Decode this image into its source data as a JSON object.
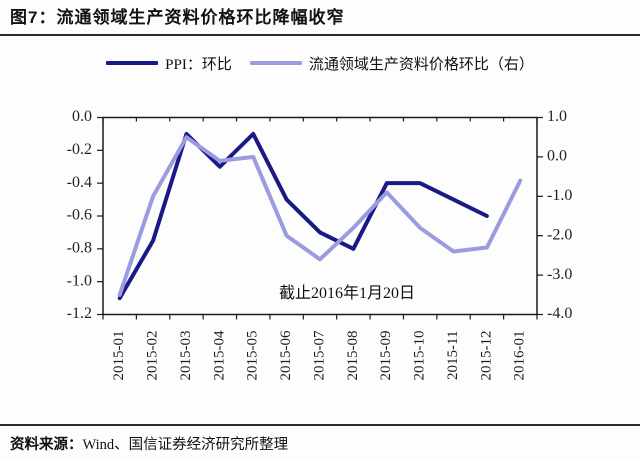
{
  "header": {
    "title": "图7：流通领域生产资料价格环比降幅收窄"
  },
  "chart_data": {
    "type": "line",
    "title": "",
    "categories": [
      "2015-01",
      "2015-02",
      "2015-03",
      "2015-04",
      "2015-05",
      "2015-06",
      "2015-07",
      "2015-08",
      "2015-09",
      "2015-10",
      "2015-11",
      "2015-12",
      "2016-01"
    ],
    "series": [
      {
        "id": "ppi",
        "name": "PPI：环比",
        "axis": "left",
        "color": "#1a1a86",
        "values": [
          -1.1,
          -0.75,
          -0.1,
          -0.3,
          -0.1,
          -0.5,
          -0.7,
          -0.8,
          -0.4,
          -0.4,
          -0.5,
          -0.6
        ]
      },
      {
        "id": "circulation",
        "name": "流通领域生产资料价格环比（右）",
        "axis": "right",
        "color": "#9b9be0",
        "values": [
          -3.5,
          -1.0,
          0.5,
          -0.1,
          0.0,
          -2.0,
          -2.6,
          -1.8,
          -0.9,
          -1.8,
          -2.4,
          -2.3,
          -0.6
        ]
      }
    ],
    "left_axis": {
      "max": 0.0,
      "min": -1.2,
      "tick_labels": [
        "0.0",
        "-0.2",
        "-0.4",
        "-0.6",
        "-0.8",
        "-1.0",
        "-1.2"
      ],
      "tick_values": [
        0.0,
        -0.2,
        -0.4,
        -0.6,
        -0.8,
        -1.0,
        -1.2
      ]
    },
    "right_axis": {
      "max": 1.0,
      "min": -4.0,
      "tick_labels": [
        "1.0",
        "0.0",
        "-1.0",
        "-2.0",
        "-3.0",
        "-4.0"
      ],
      "tick_values": [
        1.0,
        0.0,
        -1.0,
        -2.0,
        -3.0,
        -4.0
      ]
    },
    "annotation": "截止2016年1月20日",
    "legend_position": "top",
    "grid": false
  },
  "footer": {
    "source_label": "资料来源：",
    "source_text": "Wind、国信证券经济研究所整理"
  }
}
